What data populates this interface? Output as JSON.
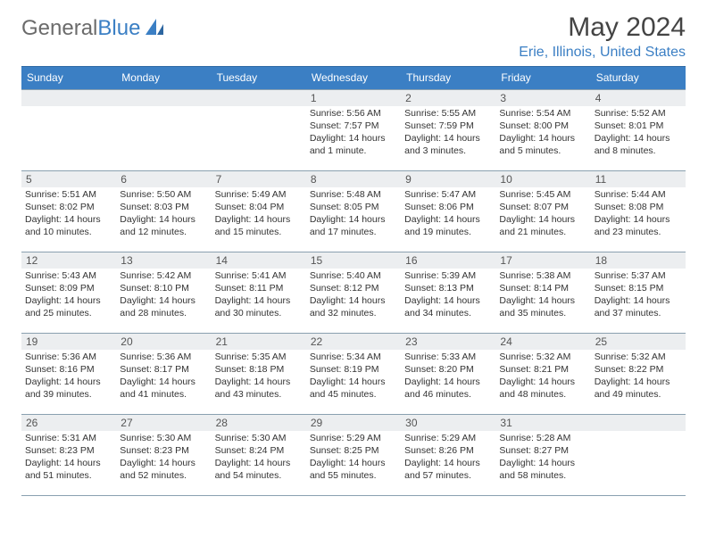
{
  "logo": {
    "word1": "General",
    "word2": "Blue"
  },
  "title": "May 2024",
  "location": "Erie, Illinois, United States",
  "colors": {
    "accent": "#3b7fc4",
    "header_text": "#444444",
    "grey_text": "#6b6b6b",
    "row_border": "#8aa0b0",
    "daynum_bg": "#eceef0",
    "body_text": "#333333",
    "bg": "#ffffff"
  },
  "daysOfWeek": [
    "Sunday",
    "Monday",
    "Tuesday",
    "Wednesday",
    "Thursday",
    "Friday",
    "Saturday"
  ],
  "weeks": [
    [
      {
        "n": "",
        "lines": []
      },
      {
        "n": "",
        "lines": []
      },
      {
        "n": "",
        "lines": []
      },
      {
        "n": "1",
        "lines": [
          "Sunrise: 5:56 AM",
          "Sunset: 7:57 PM",
          "Daylight: 14 hours",
          "and 1 minute."
        ]
      },
      {
        "n": "2",
        "lines": [
          "Sunrise: 5:55 AM",
          "Sunset: 7:59 PM",
          "Daylight: 14 hours",
          "and 3 minutes."
        ]
      },
      {
        "n": "3",
        "lines": [
          "Sunrise: 5:54 AM",
          "Sunset: 8:00 PM",
          "Daylight: 14 hours",
          "and 5 minutes."
        ]
      },
      {
        "n": "4",
        "lines": [
          "Sunrise: 5:52 AM",
          "Sunset: 8:01 PM",
          "Daylight: 14 hours",
          "and 8 minutes."
        ]
      }
    ],
    [
      {
        "n": "5",
        "lines": [
          "Sunrise: 5:51 AM",
          "Sunset: 8:02 PM",
          "Daylight: 14 hours",
          "and 10 minutes."
        ]
      },
      {
        "n": "6",
        "lines": [
          "Sunrise: 5:50 AM",
          "Sunset: 8:03 PM",
          "Daylight: 14 hours",
          "and 12 minutes."
        ]
      },
      {
        "n": "7",
        "lines": [
          "Sunrise: 5:49 AM",
          "Sunset: 8:04 PM",
          "Daylight: 14 hours",
          "and 15 minutes."
        ]
      },
      {
        "n": "8",
        "lines": [
          "Sunrise: 5:48 AM",
          "Sunset: 8:05 PM",
          "Daylight: 14 hours",
          "and 17 minutes."
        ]
      },
      {
        "n": "9",
        "lines": [
          "Sunrise: 5:47 AM",
          "Sunset: 8:06 PM",
          "Daylight: 14 hours",
          "and 19 minutes."
        ]
      },
      {
        "n": "10",
        "lines": [
          "Sunrise: 5:45 AM",
          "Sunset: 8:07 PM",
          "Daylight: 14 hours",
          "and 21 minutes."
        ]
      },
      {
        "n": "11",
        "lines": [
          "Sunrise: 5:44 AM",
          "Sunset: 8:08 PM",
          "Daylight: 14 hours",
          "and 23 minutes."
        ]
      }
    ],
    [
      {
        "n": "12",
        "lines": [
          "Sunrise: 5:43 AM",
          "Sunset: 8:09 PM",
          "Daylight: 14 hours",
          "and 25 minutes."
        ]
      },
      {
        "n": "13",
        "lines": [
          "Sunrise: 5:42 AM",
          "Sunset: 8:10 PM",
          "Daylight: 14 hours",
          "and 28 minutes."
        ]
      },
      {
        "n": "14",
        "lines": [
          "Sunrise: 5:41 AM",
          "Sunset: 8:11 PM",
          "Daylight: 14 hours",
          "and 30 minutes."
        ]
      },
      {
        "n": "15",
        "lines": [
          "Sunrise: 5:40 AM",
          "Sunset: 8:12 PM",
          "Daylight: 14 hours",
          "and 32 minutes."
        ]
      },
      {
        "n": "16",
        "lines": [
          "Sunrise: 5:39 AM",
          "Sunset: 8:13 PM",
          "Daylight: 14 hours",
          "and 34 minutes."
        ]
      },
      {
        "n": "17",
        "lines": [
          "Sunrise: 5:38 AM",
          "Sunset: 8:14 PM",
          "Daylight: 14 hours",
          "and 35 minutes."
        ]
      },
      {
        "n": "18",
        "lines": [
          "Sunrise: 5:37 AM",
          "Sunset: 8:15 PM",
          "Daylight: 14 hours",
          "and 37 minutes."
        ]
      }
    ],
    [
      {
        "n": "19",
        "lines": [
          "Sunrise: 5:36 AM",
          "Sunset: 8:16 PM",
          "Daylight: 14 hours",
          "and 39 minutes."
        ]
      },
      {
        "n": "20",
        "lines": [
          "Sunrise: 5:36 AM",
          "Sunset: 8:17 PM",
          "Daylight: 14 hours",
          "and 41 minutes."
        ]
      },
      {
        "n": "21",
        "lines": [
          "Sunrise: 5:35 AM",
          "Sunset: 8:18 PM",
          "Daylight: 14 hours",
          "and 43 minutes."
        ]
      },
      {
        "n": "22",
        "lines": [
          "Sunrise: 5:34 AM",
          "Sunset: 8:19 PM",
          "Daylight: 14 hours",
          "and 45 minutes."
        ]
      },
      {
        "n": "23",
        "lines": [
          "Sunrise: 5:33 AM",
          "Sunset: 8:20 PM",
          "Daylight: 14 hours",
          "and 46 minutes."
        ]
      },
      {
        "n": "24",
        "lines": [
          "Sunrise: 5:32 AM",
          "Sunset: 8:21 PM",
          "Daylight: 14 hours",
          "and 48 minutes."
        ]
      },
      {
        "n": "25",
        "lines": [
          "Sunrise: 5:32 AM",
          "Sunset: 8:22 PM",
          "Daylight: 14 hours",
          "and 49 minutes."
        ]
      }
    ],
    [
      {
        "n": "26",
        "lines": [
          "Sunrise: 5:31 AM",
          "Sunset: 8:23 PM",
          "Daylight: 14 hours",
          "and 51 minutes."
        ]
      },
      {
        "n": "27",
        "lines": [
          "Sunrise: 5:30 AM",
          "Sunset: 8:23 PM",
          "Daylight: 14 hours",
          "and 52 minutes."
        ]
      },
      {
        "n": "28",
        "lines": [
          "Sunrise: 5:30 AM",
          "Sunset: 8:24 PM",
          "Daylight: 14 hours",
          "and 54 minutes."
        ]
      },
      {
        "n": "29",
        "lines": [
          "Sunrise: 5:29 AM",
          "Sunset: 8:25 PM",
          "Daylight: 14 hours",
          "and 55 minutes."
        ]
      },
      {
        "n": "30",
        "lines": [
          "Sunrise: 5:29 AM",
          "Sunset: 8:26 PM",
          "Daylight: 14 hours",
          "and 57 minutes."
        ]
      },
      {
        "n": "31",
        "lines": [
          "Sunrise: 5:28 AM",
          "Sunset: 8:27 PM",
          "Daylight: 14 hours",
          "and 58 minutes."
        ]
      },
      {
        "n": "",
        "lines": []
      }
    ]
  ]
}
